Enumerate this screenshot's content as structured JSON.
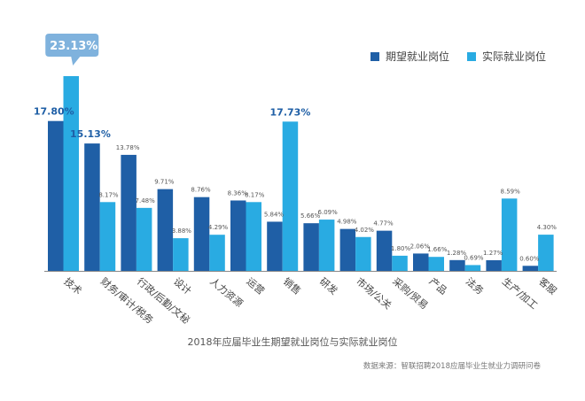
{
  "chart_data": {
    "type": "bar",
    "categories": [
      "技术",
      "财务/审计/税务",
      "行政/后勤/文秘",
      "设计",
      "人力资源",
      "运营",
      "销售",
      "研发",
      "市场/公关",
      "采购/贸易",
      "产品",
      "法务",
      "生产/加工",
      "客服"
    ],
    "series": [
      {
        "name": "期望就业岗位",
        "color": "#1f5fa6",
        "values": [
          17.8,
          15.13,
          13.78,
          9.71,
          8.76,
          8.36,
          5.84,
          5.66,
          4.98,
          4.77,
          2.06,
          1.28,
          1.27,
          0.6
        ]
      },
      {
        "name": "实际就业岗位",
        "color": "#29abe2",
        "values": [
          23.13,
          8.17,
          7.48,
          3.88,
          4.29,
          8.17,
          17.73,
          6.09,
          4.02,
          1.8,
          1.66,
          0.69,
          8.59,
          4.3
        ]
      }
    ],
    "value_labels": {
      "期望就业岗位": [
        "17.80%",
        "15.13%",
        "13.78%",
        "9.71%",
        "8.76%",
        "8.36%",
        "5.84%",
        "5.66%",
        "4.98%",
        "4.77%",
        "2.06%",
        "1.28%",
        "1.27%",
        "0.60%"
      ],
      "实际就业岗位": [
        "23.13%",
        "8.17%",
        "7.48%",
        "3.88%",
        "4.29%",
        "8.17%",
        "17.73%",
        "6.09%",
        "4.02%",
        "1.80%",
        "1.66%",
        "0.69%",
        "8.59%",
        "4.30%"
      ]
    },
    "highlight_labels": [
      "17.80%",
      "15.13%",
      "17.73%"
    ],
    "callout_label": "23.13%",
    "title": "2018年应届毕业生期望就业岗位与实际就业岗位",
    "source": "数据来源：智联招聘2018应届毕业生就业力调研问卷",
    "ylim": [
      0,
      23.13
    ],
    "legend_position": "top-right",
    "grid": false
  }
}
